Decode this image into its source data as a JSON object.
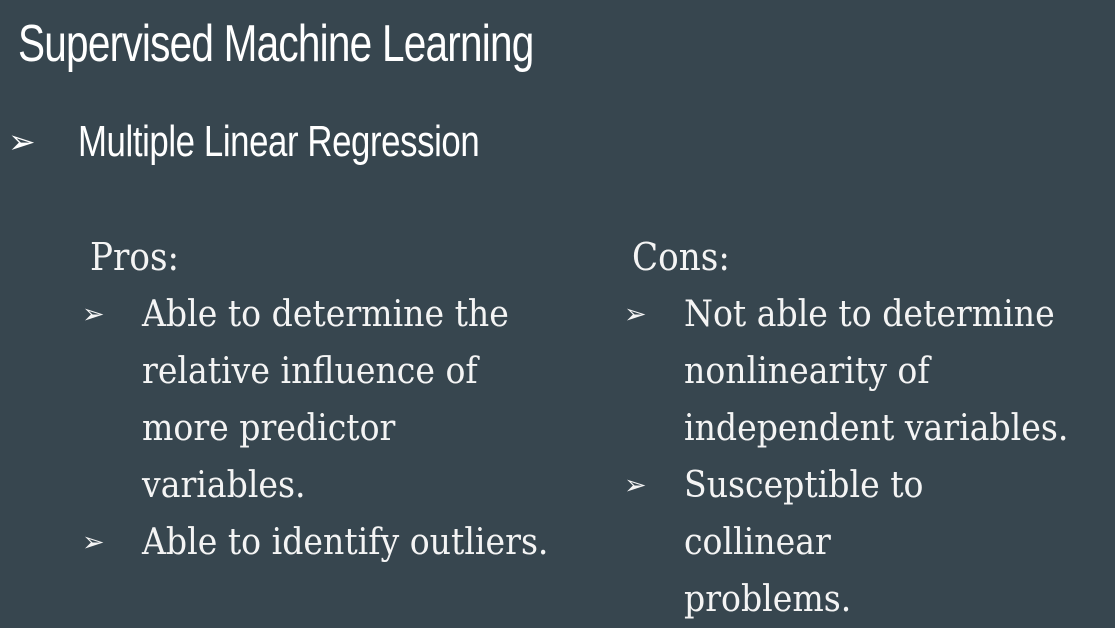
{
  "slide": {
    "title": "Supervised Machine Learning",
    "subtitle_bullet": "➢",
    "subtitle": "Multiple Linear Regression"
  },
  "pros": {
    "heading": "Pros:",
    "bullet": "➢",
    "items": [
      "Able to determine the\nrelative influence of\nmore predictor variables.",
      "Able to identify outliers."
    ]
  },
  "cons": {
    "heading": "Cons:",
    "bullet": "➢",
    "items": [
      "Not able to determine\nnonlinearity of\nindependent variables.",
      "Susceptible to collinear\nproblems."
    ]
  }
}
